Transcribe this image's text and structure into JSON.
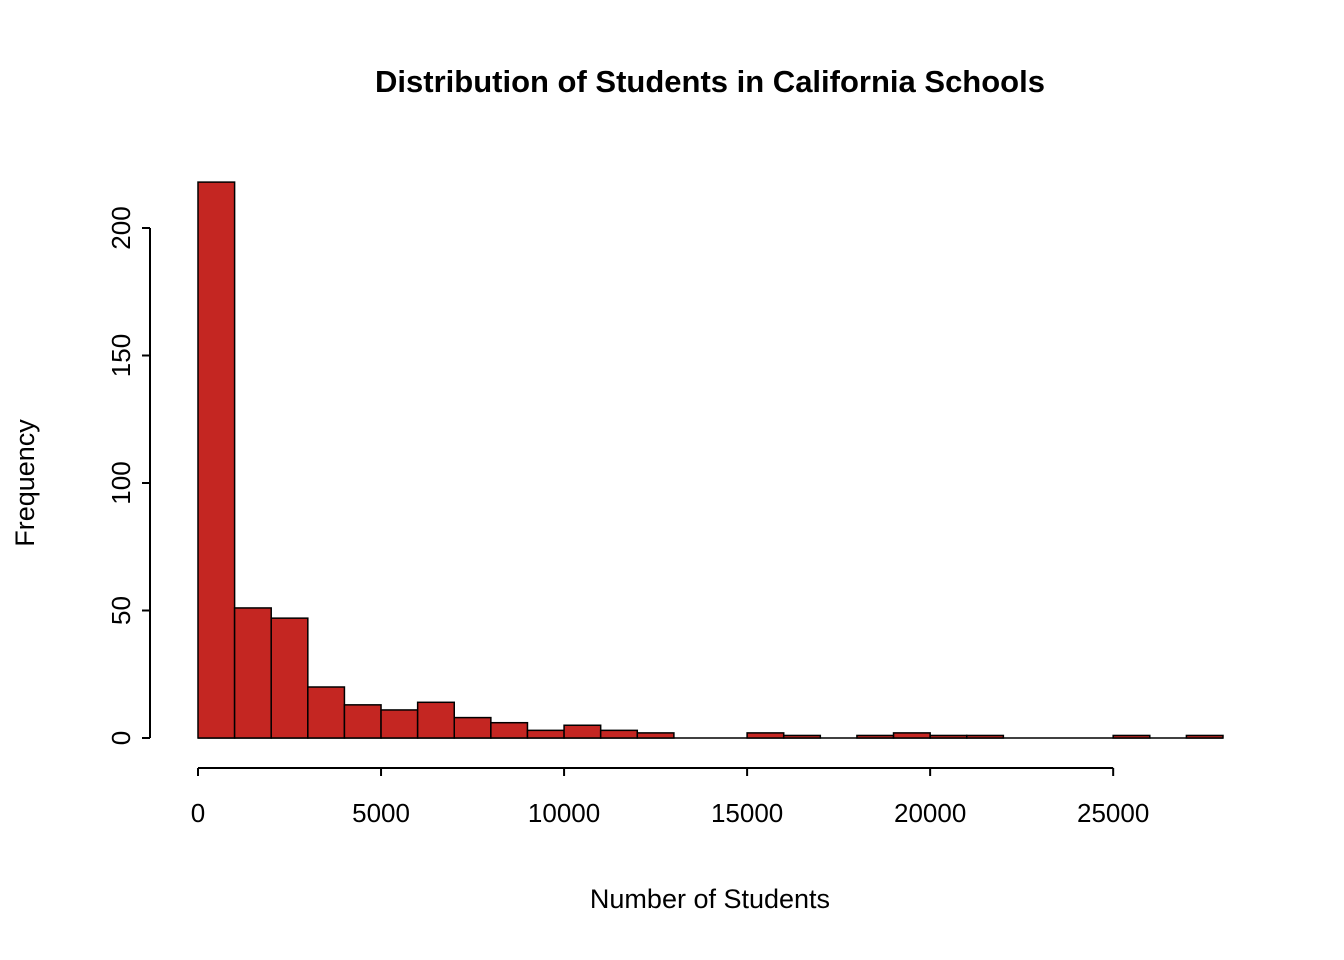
{
  "chart_data": {
    "type": "bar",
    "subtype": "histogram",
    "title": "Distribution of Students in California Schools",
    "xlabel": "Number of Students",
    "ylabel": "Frequency",
    "bar_color": "#C42622",
    "bar_border_color": "#000000",
    "axis_color": "#000000",
    "background": "#ffffff",
    "bin_start": 0,
    "bin_width": 1000,
    "counts": [
      218,
      51,
      47,
      20,
      13,
      11,
      14,
      8,
      6,
      3,
      5,
      3,
      2,
      0,
      0,
      2,
      1,
      0,
      1,
      2,
      1,
      1,
      0,
      0,
      0,
      1,
      0,
      1
    ],
    "x_ticks": [
      0,
      5000,
      10000,
      15000,
      20000,
      25000
    ],
    "y_ticks": [
      0,
      50,
      100,
      150,
      200
    ],
    "xlim": [
      0,
      28000
    ],
    "ylim": [
      0,
      220
    ],
    "grid": false,
    "legend": "none"
  }
}
